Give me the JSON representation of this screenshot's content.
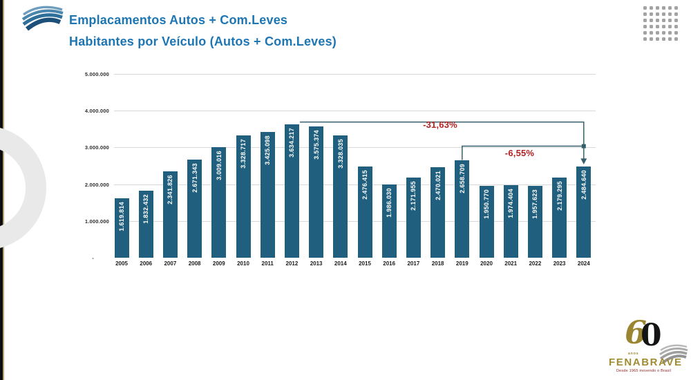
{
  "slide": {
    "title_line1": "Emplacamentos Autos + Com.Leves",
    "title_line2": "Habitantes por Veículo (Autos + Com.Leves)"
  },
  "chart_data": {
    "type": "bar",
    "title": "Emplacamentos Autos + Com.Leves — Habitantes por Veículo (Autos + Com.Leves)",
    "xlabel": "",
    "ylabel": "",
    "ylim": [
      0,
      5000000
    ],
    "grid": true,
    "legend": false,
    "bar_color": "#215f7f",
    "value_label_color": "#ffffff",
    "categories": [
      "2005",
      "2006",
      "2007",
      "2008",
      "2009",
      "2010",
      "2011",
      "2012",
      "2013",
      "2014",
      "2015",
      "2016",
      "2017",
      "2018",
      "2019",
      "2020",
      "2021",
      "2022",
      "2023",
      "2024"
    ],
    "values": [
      1619814,
      1832432,
      2341826,
      2671343,
      3009016,
      3328717,
      3425098,
      3634217,
      3575374,
      3328035,
      2476415,
      1986030,
      2171955,
      2470021,
      2658709,
      1950770,
      1974404,
      1957623,
      2179295,
      2484640
    ],
    "value_labels": [
      "1.619.814",
      "1.832.432",
      "2.341.826",
      "2.671.343",
      "3.009.016",
      "3.328.717",
      "3.425.098",
      "3.634.217",
      "3.575.374",
      "3.328.035",
      "2.476.415",
      "1.986.030",
      "2.171.955",
      "2.470.021",
      "2.658.709",
      "1.950.770",
      "1.974.404",
      "1.957.623",
      "2.179.295",
      "2.484.640"
    ],
    "yticks": [
      {
        "value": 5000000,
        "label": "5.000.000"
      },
      {
        "value": 4000000,
        "label": "4.000.000"
      },
      {
        "value": 3000000,
        "label": "3.000.000"
      },
      {
        "value": 2000000,
        "label": "2.000.000"
      },
      {
        "value": 1000000,
        "label": "1.000.000"
      },
      {
        "value": 0,
        "label": "-"
      }
    ],
    "annotations": [
      {
        "label": "-31,63%",
        "from_category": "2012",
        "to_category": "2024",
        "text_color": "#b32222",
        "line_color": "#35606b"
      },
      {
        "label": "-6,55%",
        "from_category": "2019",
        "to_category": "2024",
        "text_color": "#b32222",
        "line_color": "#35606b"
      }
    ]
  },
  "branding": {
    "anniversary_digits": {
      "first": "6",
      "second": "0"
    },
    "anniversary_sub": "anos",
    "wordmark": "FENABRAVE",
    "tagline": "Desde 1965 movendo o Brasil",
    "colors": {
      "gold": "#a18c33",
      "title_blue": "#1d76b4",
      "bar_teal": "#215f7f",
      "annotation_red": "#b32222"
    }
  }
}
